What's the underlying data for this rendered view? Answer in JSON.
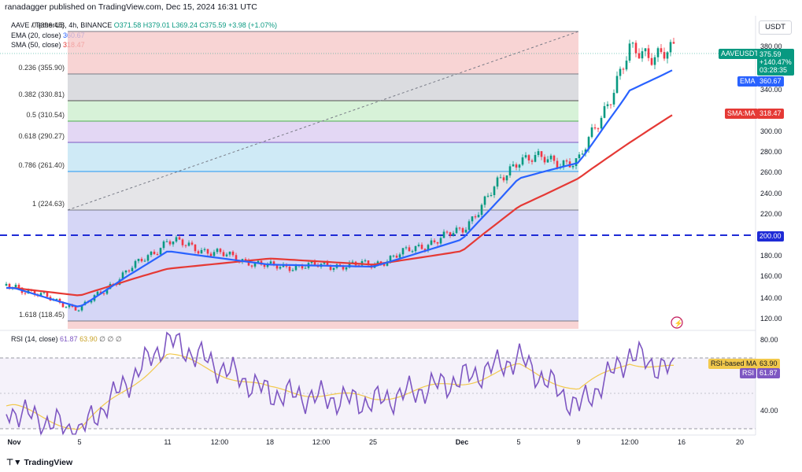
{
  "header": {
    "publisher": "ranadagger published on TradingView.com, Dec 15, 2024 16:31 UTC",
    "symbol": "AAVE / TetherUS, 4h, BINANCE",
    "o": "O371.58",
    "h": "H379.01",
    "l": "L369.24",
    "c": "C375.59",
    "chg": "+3.98 (+1.07%)",
    "ema_label": "EMA (20, close)",
    "ema_value": "360.67",
    "sma_label": "SMA (50, close)",
    "sma_value": "318.47",
    "currency": "USDT"
  },
  "colors": {
    "ema": "#2962ff",
    "sma": "#e53935",
    "up": "#089981",
    "down": "#f23645",
    "rsi": "#7e57c2",
    "rsi_ma": "#f2c94c",
    "support": "#1e2bd6"
  },
  "chart_data": [
    {
      "type": "candlestick",
      "title": "AAVE / TetherUS, 4h, BINANCE",
      "y_axis_ticks": [
        "380.00",
        "340.00",
        "300.00",
        "280.00",
        "260.00",
        "240.00",
        "220.00",
        "200.00",
        "180.00",
        "160.00",
        "140.00",
        "120.00"
      ],
      "x_axis_ticks": [
        "Nov",
        "5",
        "11",
        "12:00",
        "18",
        "12:00",
        "25",
        "Dec",
        "5",
        "9",
        "12:00",
        "16",
        "20"
      ],
      "support_level": 200.0,
      "fibonacci": [
        {
          "ratio": "0",
          "price": 396.45,
          "label": "0 (396.45)"
        },
        {
          "ratio": "0.236",
          "price": 355.9,
          "label": "0.236 (355.90)"
        },
        {
          "ratio": "0.382",
          "price": 330.81,
          "label": "0.382 (330.81)"
        },
        {
          "ratio": "0.5",
          "price": 310.54,
          "label": "0.5 (310.54)"
        },
        {
          "ratio": "0.618",
          "price": 290.27,
          "label": "0.618 (290.27)"
        },
        {
          "ratio": "0.786",
          "price": 261.4,
          "label": "0.786 (261.40)"
        },
        {
          "ratio": "1",
          "price": 224.63,
          "label": "1 (224.63)"
        },
        {
          "ratio": "1.618",
          "price": 118.45,
          "label": "1.618 (118.45)"
        }
      ],
      "price_tags": {
        "last": {
          "symbol": "AAVEUSDT",
          "price": "375.59",
          "change": "+140.47%",
          "countdown": "03:28:35"
        },
        "ema": {
          "label": "EMA",
          "value": "360.67"
        },
        "sma": {
          "label": "SMA:MA",
          "value": "318.47"
        },
        "support": {
          "value": "200.00"
        }
      },
      "series": [
        {
          "name": "price (approx. close)",
          "x": [
            "Nov",
            "5",
            "11",
            "18",
            "25",
            "Dec",
            "5",
            "9",
            "12:00",
            "16"
          ],
          "values": [
            152,
            130,
            195,
            170,
            172,
            205,
            275,
            270,
            375,
            375.59
          ]
        },
        {
          "name": "EMA (20, close)",
          "x": [
            "Nov",
            "5",
            "11",
            "18",
            "25",
            "Dec",
            "5",
            "9",
            "12:00",
            "16"
          ],
          "values": [
            150,
            132,
            185,
            172,
            170,
            196,
            255,
            270,
            340,
            360.67
          ]
        },
        {
          "name": "SMA (50, close)",
          "x": [
            "Nov",
            "5",
            "11",
            "18",
            "25",
            "Dec",
            "5",
            "9",
            "12:00",
            "16"
          ],
          "values": [
            150,
            143,
            168,
            178,
            172,
            185,
            228,
            255,
            290,
            318.47
          ]
        }
      ]
    },
    {
      "type": "line",
      "title": "RSI (14, close)",
      "rsi_value": "61.87",
      "rsi_ma_value": "63.90",
      "y_axis_ticks": [
        "80.00",
        "40.00"
      ],
      "tags": {
        "rsi_ma_label": "RSI-based MA",
        "rsi_ma": "63.90",
        "rsi_label": "RSI",
        "rsi": "61.87"
      },
      "series": [
        {
          "name": "RSI",
          "x": [
            "Nov",
            "5",
            "11",
            "18",
            "25",
            "Dec",
            "5",
            "9",
            "12:00",
            "16"
          ],
          "values": [
            40,
            28,
            80,
            50,
            45,
            58,
            70,
            42,
            72,
            61.87
          ]
        },
        {
          "name": "RSI-based MA",
          "x": [
            "Nov",
            "5",
            "11",
            "18",
            "25",
            "Dec",
            "5",
            "9",
            "12:00",
            "16"
          ],
          "values": [
            42,
            30,
            72,
            52,
            47,
            56,
            65,
            52,
            68,
            63.9
          ]
        }
      ]
    }
  ],
  "brand": "TradingView"
}
